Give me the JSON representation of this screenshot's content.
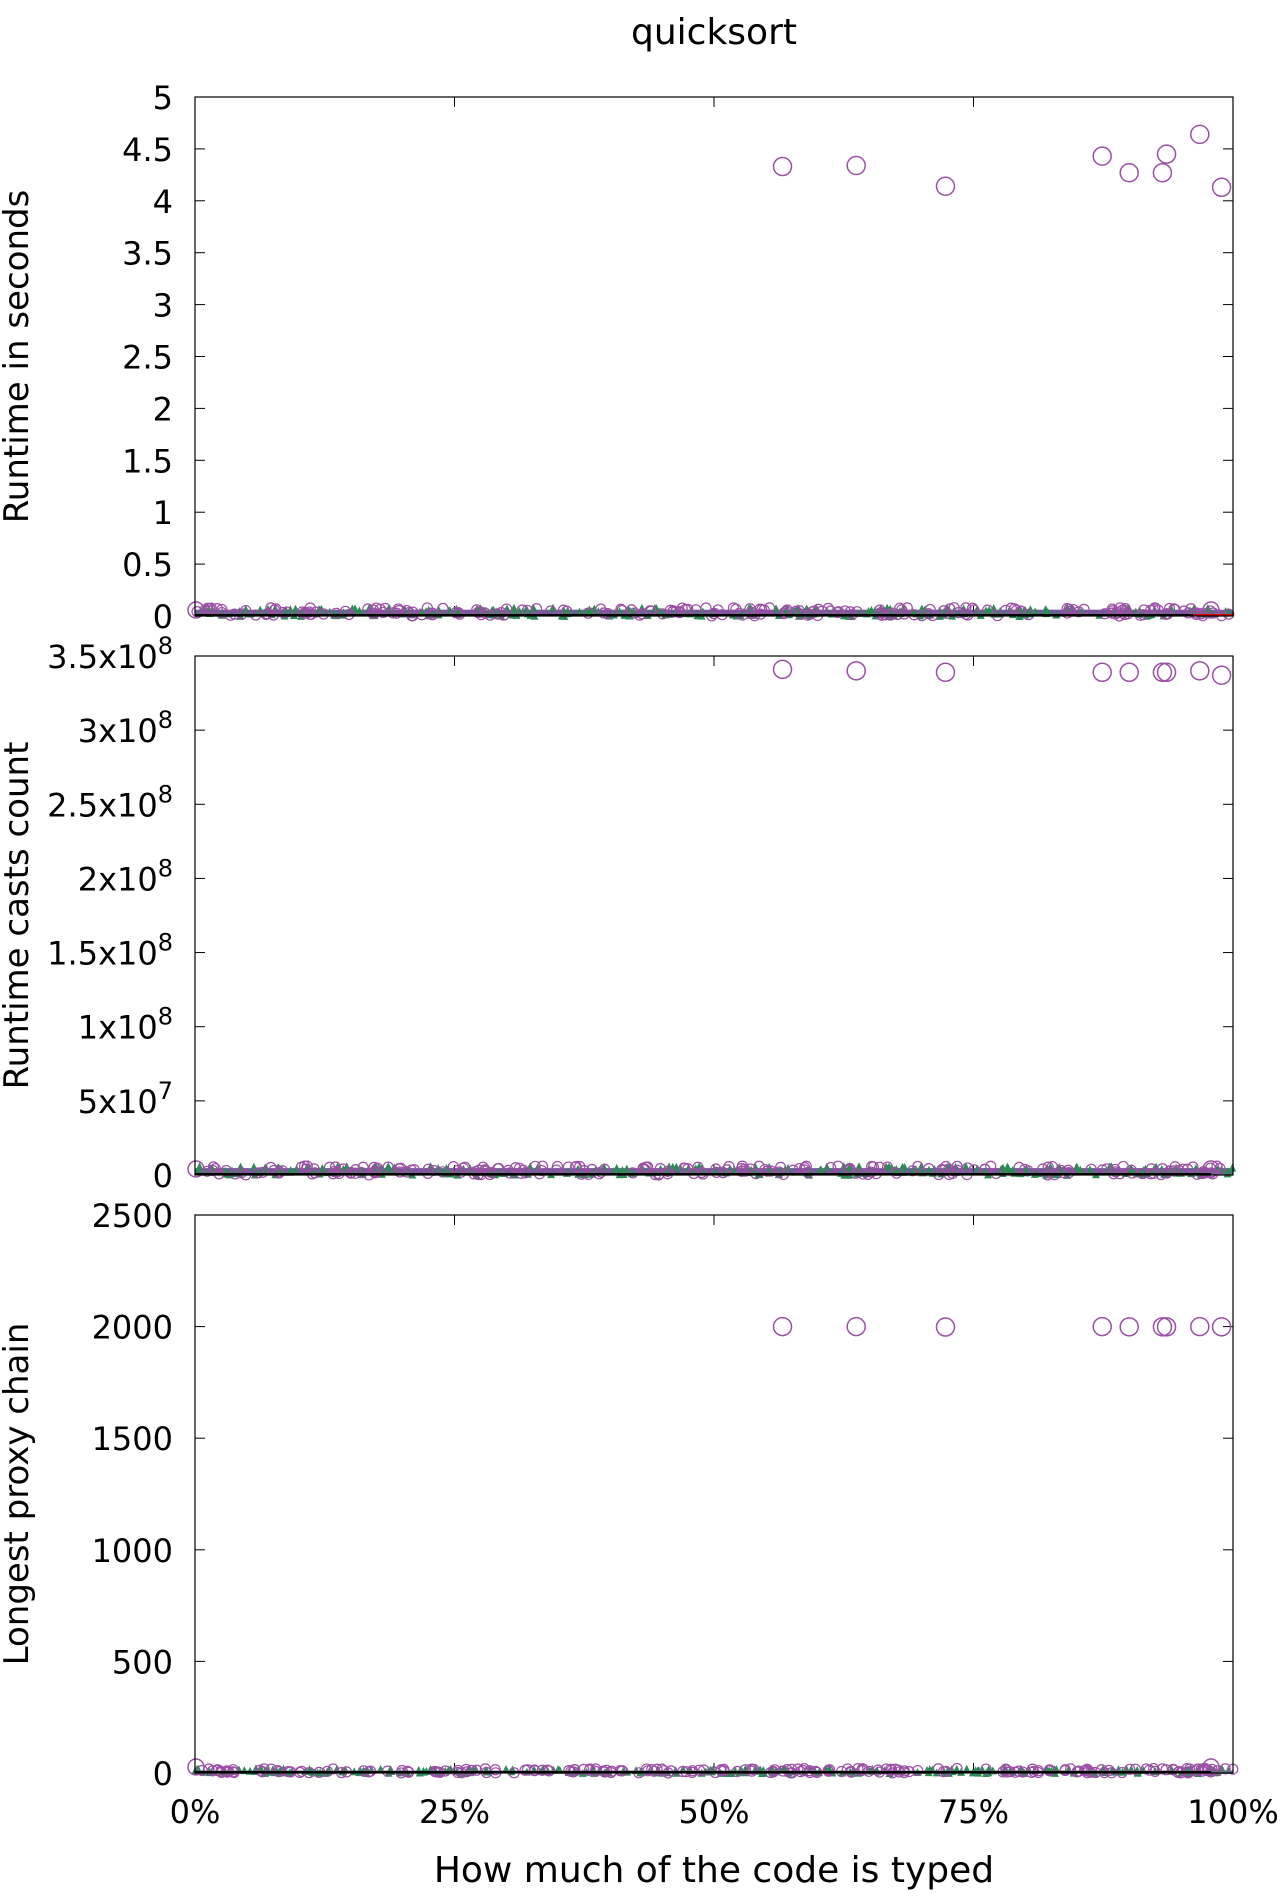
{
  "title": "quicksort",
  "xlabel": "How much of the code is typed",
  "colors": {
    "circle": "#9b4fa5",
    "band_purple": "#5b3d8c",
    "band_green": "#2e8b57",
    "mean_line": "#000000",
    "red_line": "#e00000"
  },
  "chart_data": [
    {
      "type": "scatter",
      "ylabel": "Runtime in seconds",
      "xlim": [
        0,
        1
      ],
      "ylim": [
        0,
        5
      ],
      "xticks": [
        0,
        0.25,
        0.5,
        0.75,
        1
      ],
      "yticks": [
        0,
        0.5,
        1,
        1.5,
        2,
        2.5,
        3,
        3.5,
        4,
        4.5,
        5
      ],
      "ytick_labels": [
        "0",
        "0.5",
        "1",
        "1.5",
        "2",
        "2.5",
        "3",
        "3.5",
        "4",
        "4.5",
        "5"
      ],
      "band_max": 0.08,
      "points": [
        [
          0.566,
          4.33
        ],
        [
          0.637,
          4.34
        ],
        [
          0.723,
          4.14
        ],
        [
          0.874,
          4.43
        ],
        [
          0.9,
          4.27
        ],
        [
          0.932,
          4.27
        ],
        [
          0.936,
          4.45
        ],
        [
          0.968,
          4.64
        ],
        [
          0.989,
          4.13
        ]
      ]
    },
    {
      "type": "scatter",
      "ylabel": "Runtime casts count",
      "xlim": [
        0,
        1
      ],
      "ylim": [
        0,
        350000000
      ],
      "xticks": [
        0,
        0.25,
        0.5,
        0.75,
        1
      ],
      "yticks": [
        0,
        50000000,
        100000000,
        150000000,
        200000000,
        250000000,
        300000000,
        350000000
      ],
      "ytick_labels": [
        {
          "base": "0",
          "exp": ""
        },
        {
          "base": "5x10",
          "exp": "7"
        },
        {
          "base": "1x10",
          "exp": "8"
        },
        {
          "base": "1.5x10",
          "exp": "8"
        },
        {
          "base": "2x10",
          "exp": "8"
        },
        {
          "base": "2.5x10",
          "exp": "8"
        },
        {
          "base": "3x10",
          "exp": "8"
        },
        {
          "base": "3.5x10",
          "exp": "8"
        }
      ],
      "band_max": 6000000,
      "points": [
        [
          0.566,
          341000000
        ],
        [
          0.637,
          340000000
        ],
        [
          0.723,
          339000000
        ],
        [
          0.874,
          339000000
        ],
        [
          0.9,
          339000000
        ],
        [
          0.932,
          339000000
        ],
        [
          0.936,
          339000000
        ],
        [
          0.968,
          340000000
        ],
        [
          0.989,
          337000000
        ]
      ]
    },
    {
      "type": "scatter",
      "ylabel": "Longest proxy chain",
      "xlim": [
        0,
        1
      ],
      "ylim": [
        0,
        2500
      ],
      "xticks": [
        0,
        0.25,
        0.5,
        0.75,
        1
      ],
      "xtick_labels": [
        "0%",
        "25%",
        "50%",
        "75%",
        "100%"
      ],
      "yticks": [
        0,
        500,
        1000,
        1500,
        2000,
        2500
      ],
      "ytick_labels": [
        "0",
        "500",
        "1000",
        "1500",
        "2000",
        "2500"
      ],
      "band_max": 20,
      "points": [
        [
          0.566,
          2000
        ],
        [
          0.637,
          2000
        ],
        [
          0.723,
          1998
        ],
        [
          0.874,
          2000
        ],
        [
          0.9,
          1999
        ],
        [
          0.932,
          1999
        ],
        [
          0.936,
          1999
        ],
        [
          0.968,
          2000
        ],
        [
          0.989,
          1999
        ]
      ]
    }
  ]
}
